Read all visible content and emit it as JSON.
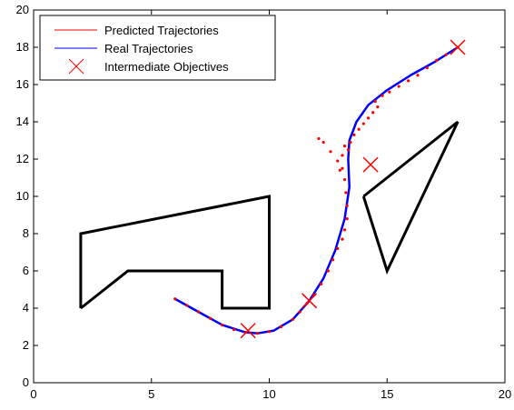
{
  "chart_data": {
    "type": "scatter",
    "title": "",
    "xlabel": "",
    "ylabel": "",
    "xlim": [
      0,
      20
    ],
    "ylim": [
      0,
      20
    ],
    "xticks": [
      0,
      5,
      10,
      15,
      20
    ],
    "yticks": [
      0,
      2,
      4,
      6,
      8,
      10,
      12,
      14,
      16,
      18,
      20
    ],
    "grid": false,
    "legend_position": "top-left",
    "legend": [
      {
        "label": "Predicted Trajectories",
        "color": "#ff0000",
        "marker": "line"
      },
      {
        "label": "Real Trajectories",
        "color": "#0000ff",
        "marker": "line"
      },
      {
        "label": "Intermediate Objectives",
        "color": "#ff0000",
        "marker": "x"
      }
    ],
    "obstacles": [
      {
        "name": "obstacle-left",
        "points": [
          [
            2,
            4
          ],
          [
            2,
            8
          ],
          [
            10,
            10
          ],
          [
            10,
            4
          ],
          [
            8,
            4
          ],
          [
            8,
            6
          ],
          [
            4,
            6
          ],
          [
            2,
            4
          ]
        ]
      },
      {
        "name": "obstacle-right",
        "points": [
          [
            14,
            10
          ],
          [
            18,
            14
          ],
          [
            15,
            6
          ],
          [
            14,
            10
          ]
        ]
      }
    ],
    "series": [
      {
        "name": "Real Trajectories",
        "color": "#0000ff",
        "style": "line",
        "points": [
          [
            6.0,
            4.5
          ],
          [
            7.0,
            3.8
          ],
          [
            8.0,
            3.1
          ],
          [
            9.0,
            2.7
          ],
          [
            9.5,
            2.65
          ],
          [
            10.2,
            2.8
          ],
          [
            11.0,
            3.4
          ],
          [
            11.7,
            4.4
          ],
          [
            12.3,
            5.6
          ],
          [
            12.8,
            7.1
          ],
          [
            13.2,
            8.8
          ],
          [
            13.4,
            10.5
          ],
          [
            13.35,
            12.0
          ],
          [
            13.4,
            13.0
          ],
          [
            13.7,
            14.0
          ],
          [
            14.2,
            14.9
          ],
          [
            15.0,
            15.7
          ],
          [
            16.0,
            16.5
          ],
          [
            17.0,
            17.2
          ],
          [
            18.0,
            18.0
          ]
        ]
      },
      {
        "name": "Predicted Trajectories",
        "color": "#ff0000",
        "style": "dots",
        "points": [
          [
            6.0,
            4.5
          ],
          [
            6.5,
            4.15
          ],
          [
            7.0,
            3.8
          ],
          [
            7.5,
            3.45
          ],
          [
            8.0,
            3.1
          ],
          [
            8.5,
            2.85
          ],
          [
            9.0,
            2.7
          ],
          [
            9.5,
            2.65
          ],
          [
            10.0,
            2.75
          ],
          [
            10.5,
            3.0
          ],
          [
            11.0,
            3.4
          ],
          [
            11.3,
            3.8
          ],
          [
            11.6,
            4.25
          ],
          [
            11.9,
            4.7
          ],
          [
            12.2,
            5.3
          ],
          [
            12.5,
            6.0
          ],
          [
            12.7,
            6.6
          ],
          [
            12.9,
            7.2
          ],
          [
            13.1,
            7.7
          ],
          [
            13.2,
            8.2
          ],
          [
            13.3,
            8.8
          ],
          [
            13.3,
            9.5
          ],
          [
            13.25,
            10.2
          ],
          [
            13.2,
            10.9
          ],
          [
            13.1,
            11.5
          ],
          [
            12.9,
            11.9
          ],
          [
            12.6,
            12.4
          ],
          [
            12.3,
            12.9
          ],
          [
            12.1,
            13.1
          ],
          [
            13.0,
            11.4
          ],
          [
            13.1,
            12.2
          ],
          [
            13.2,
            12.7
          ],
          [
            13.35,
            12.5
          ],
          [
            13.45,
            12.9
          ],
          [
            13.6,
            13.3
          ],
          [
            13.8,
            13.6
          ],
          [
            14.0,
            13.9
          ],
          [
            14.2,
            14.2
          ],
          [
            14.4,
            14.5
          ],
          [
            14.6,
            14.8
          ],
          [
            14.5,
            15.1
          ],
          [
            14.8,
            15.4
          ],
          [
            15.1,
            15.6
          ],
          [
            15.5,
            15.9
          ],
          [
            15.9,
            16.2
          ],
          [
            16.3,
            16.5
          ],
          [
            16.7,
            16.9
          ],
          [
            17.1,
            17.3
          ],
          [
            17.5,
            17.6
          ],
          [
            18.0,
            18.0
          ]
        ]
      },
      {
        "name": "Intermediate Objectives",
        "color": "#ff0000",
        "style": "x",
        "points": [
          [
            9.1,
            2.8
          ],
          [
            11.7,
            4.4
          ],
          [
            14.3,
            11.7
          ],
          [
            18.0,
            18.0
          ]
        ]
      }
    ]
  }
}
